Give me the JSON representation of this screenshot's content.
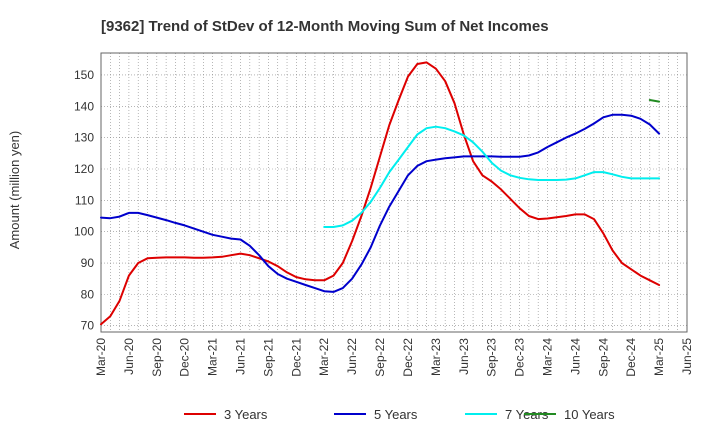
{
  "chart_data": {
    "type": "line",
    "title": "[9362]  Trend of StDev of 12-Month Moving Sum of Net Incomes",
    "xlabel": "",
    "ylabel": "Amount (million yen)",
    "ylim": [
      68,
      157
    ],
    "yticks": [
      70,
      80,
      90,
      100,
      110,
      120,
      130,
      140,
      150
    ],
    "x_range": [
      "2020-03",
      "2025-06"
    ],
    "x_ticks": [
      "Mar-20",
      "Jun-20",
      "Sep-20",
      "Dec-20",
      "Mar-21",
      "Jun-21",
      "Sep-21",
      "Dec-21",
      "Mar-22",
      "Jun-22",
      "Sep-22",
      "Dec-22",
      "Mar-23",
      "Jun-23",
      "Sep-23",
      "Dec-23",
      "Mar-24",
      "Jun-24",
      "Sep-24",
      "Dec-24",
      "Mar-25",
      "Jun-25"
    ],
    "grid": true,
    "legend_position": "bottom",
    "series": [
      {
        "name": "3 Years",
        "color": "#dd0000",
        "x": [
          "2020-03",
          "2020-04",
          "2020-05",
          "2020-06",
          "2020-07",
          "2020-08",
          "2020-09",
          "2020-10",
          "2020-11",
          "2020-12",
          "2021-01",
          "2021-02",
          "2021-03",
          "2021-04",
          "2021-05",
          "2021-06",
          "2021-07",
          "2021-08",
          "2021-09",
          "2021-10",
          "2021-11",
          "2021-12",
          "2022-01",
          "2022-02",
          "2022-03",
          "2022-04",
          "2022-05",
          "2022-06",
          "2022-07",
          "2022-08",
          "2022-09",
          "2022-10",
          "2022-11",
          "2022-12",
          "2023-01",
          "2023-02",
          "2023-03",
          "2023-04",
          "2023-05",
          "2023-06",
          "2023-07",
          "2023-08",
          "2023-09",
          "2023-10",
          "2023-11",
          "2023-12",
          "2024-01",
          "2024-02",
          "2024-03",
          "2024-04",
          "2024-05",
          "2024-06",
          "2024-07",
          "2024-08",
          "2024-09",
          "2024-10",
          "2024-11",
          "2024-12",
          "2025-01",
          "2025-02",
          "2025-03"
        ],
        "values": [
          70.5,
          73,
          78,
          86,
          90,
          91.5,
          91.7,
          91.8,
          91.8,
          91.8,
          91.7,
          91.7,
          91.8,
          92,
          92.5,
          93,
          92.5,
          91.5,
          90.5,
          89,
          87,
          85.5,
          84.8,
          84.5,
          84.5,
          86,
          90,
          97,
          105,
          114,
          124,
          134,
          142,
          149.5,
          153.5,
          154,
          152,
          148,
          141,
          131,
          122.5,
          118,
          116,
          113.5,
          110.5,
          107.5,
          105,
          104,
          104.2,
          104.6,
          105,
          105.5,
          105.5,
          104,
          99.5,
          94,
          90,
          88,
          86,
          84.5,
          83
        ]
      },
      {
        "name": "5 Years",
        "color": "#0000cc",
        "x": [
          "2020-03",
          "2020-04",
          "2020-05",
          "2020-06",
          "2020-07",
          "2020-08",
          "2020-09",
          "2020-10",
          "2020-11",
          "2020-12",
          "2021-01",
          "2021-02",
          "2021-03",
          "2021-04",
          "2021-05",
          "2021-06",
          "2021-07",
          "2021-08",
          "2021-09",
          "2021-10",
          "2021-11",
          "2021-12",
          "2022-01",
          "2022-02",
          "2022-03",
          "2022-04",
          "2022-05",
          "2022-06",
          "2022-07",
          "2022-08",
          "2022-09",
          "2022-10",
          "2022-11",
          "2022-12",
          "2023-01",
          "2023-02",
          "2023-03",
          "2023-04",
          "2023-05",
          "2023-06",
          "2023-07",
          "2023-08",
          "2023-09",
          "2023-10",
          "2023-11",
          "2023-12",
          "2024-01",
          "2024-02",
          "2024-03",
          "2024-04",
          "2024-05",
          "2024-06",
          "2024-07",
          "2024-08",
          "2024-09",
          "2024-10",
          "2024-11",
          "2024-12",
          "2025-01",
          "2025-02",
          "2025-03"
        ],
        "values": [
          104.5,
          104.3,
          104.8,
          106,
          106,
          105.3,
          104.5,
          103.7,
          102.8,
          102,
          101,
          100,
          99,
          98.4,
          97.8,
          97.5,
          95.5,
          92.5,
          89,
          86.5,
          85,
          84,
          83,
          82,
          81,
          80.8,
          82,
          85,
          89.5,
          95,
          102,
          108,
          113,
          118,
          121,
          122.5,
          123,
          123.4,
          123.7,
          124,
          124,
          124,
          124,
          123.9,
          123.9,
          123.9,
          124.3,
          125.3,
          127,
          128.5,
          130,
          131.3,
          132.8,
          134.5,
          136.5,
          137.3,
          137.3,
          137,
          136,
          134.2,
          131.3
        ]
      },
      {
        "name": "7 Years",
        "color": "#00eeee",
        "x": [
          "2022-03",
          "2022-04",
          "2022-05",
          "2022-06",
          "2022-07",
          "2022-08",
          "2022-09",
          "2022-10",
          "2022-11",
          "2022-12",
          "2023-01",
          "2023-02",
          "2023-03",
          "2023-04",
          "2023-05",
          "2023-06",
          "2023-07",
          "2023-08",
          "2023-09",
          "2023-10",
          "2023-11",
          "2023-12",
          "2024-01",
          "2024-02",
          "2024-03",
          "2024-04",
          "2024-05",
          "2024-06",
          "2024-07",
          "2024-08",
          "2024-09",
          "2024-10",
          "2024-11",
          "2024-12",
          "2025-01",
          "2025-02",
          "2025-03"
        ],
        "values": [
          101.5,
          101.5,
          102,
          103.5,
          106,
          109.5,
          114,
          119,
          123,
          127,
          131,
          133,
          133.5,
          133,
          132,
          130.7,
          128.5,
          125.5,
          122,
          119.5,
          118,
          117.2,
          116.7,
          116.5,
          116.5,
          116.5,
          116.6,
          117,
          118,
          119,
          119,
          118.3,
          117.5,
          117,
          117,
          117,
          117
        ]
      },
      {
        "name": "10 Years",
        "color": "#228b22",
        "x": [
          "2025-02",
          "2025-03"
        ],
        "values": [
          142,
          141.5
        ]
      }
    ]
  }
}
